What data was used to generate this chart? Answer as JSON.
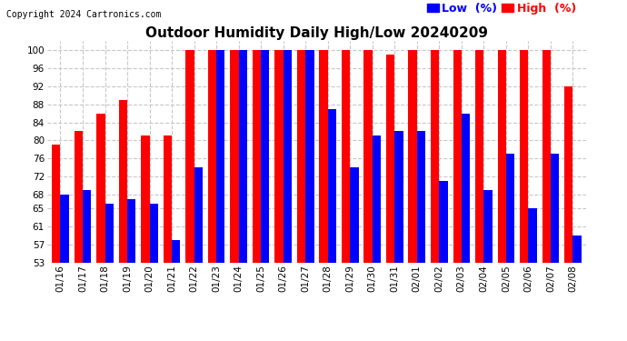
{
  "title": "Outdoor Humidity Daily High/Low 20240209",
  "copyright": "Copyright 2024 Cartronics.com",
  "legend_low": "Low  (%)",
  "legend_high": "High  (%)",
  "dates": [
    "01/16",
    "01/17",
    "01/18",
    "01/19",
    "01/20",
    "01/21",
    "01/22",
    "01/23",
    "01/24",
    "01/25",
    "01/26",
    "01/27",
    "01/28",
    "01/29",
    "01/30",
    "01/31",
    "02/01",
    "02/02",
    "02/03",
    "02/04",
    "02/05",
    "02/06",
    "02/07",
    "02/08"
  ],
  "high": [
    79,
    82,
    86,
    89,
    81,
    81,
    100,
    100,
    100,
    100,
    100,
    100,
    100,
    100,
    100,
    99,
    100,
    100,
    100,
    100,
    100,
    100,
    100,
    92
  ],
  "low": [
    68,
    69,
    66,
    67,
    66,
    58,
    74,
    100,
    100,
    100,
    100,
    100,
    87,
    74,
    81,
    82,
    82,
    71,
    86,
    69,
    77,
    65,
    77,
    59
  ],
  "high_color": "#ff0000",
  "low_color": "#0000ff",
  "bg_color": "#ffffff",
  "grid_color": "#c8c8c8",
  "ylim_min": 53,
  "ylim_max": 102,
  "yticks": [
    53,
    57,
    61,
    65,
    68,
    72,
    76,
    80,
    84,
    88,
    92,
    96,
    100
  ],
  "title_fontsize": 11,
  "copyright_fontsize": 7,
  "legend_fontsize": 9,
  "tick_fontsize": 7.5,
  "bar_width": 0.38
}
